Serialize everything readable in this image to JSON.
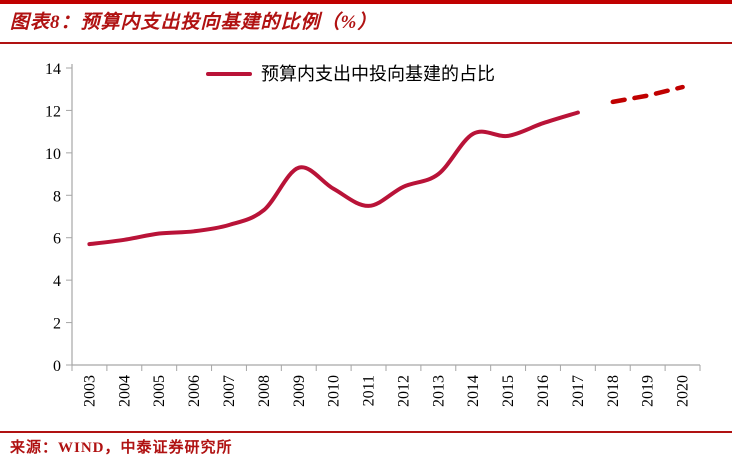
{
  "header": {
    "title": "图表8：预算内支出投向基建的比例（%）"
  },
  "footer": {
    "source": "来源：WIND，中泰证券研究所"
  },
  "colors": {
    "accent_red": "#b01212",
    "title_rule_red": "#c00000",
    "line_solid": "#b91338",
    "line_dashed": "#c00000",
    "axis_gray": "#a6a6a6",
    "label_black": "#000000"
  },
  "chart_data": {
    "type": "line",
    "title": "预算内支出投向基建的比例（%）",
    "xlabel": "",
    "ylabel": "",
    "ylim": [
      0,
      14
    ],
    "yticks": [
      0,
      2,
      4,
      6,
      8,
      10,
      12,
      14
    ],
    "grid": false,
    "legend_position": "top-center",
    "categories": [
      "2003",
      "2004",
      "2005",
      "2006",
      "2007",
      "2008",
      "2009",
      "2010",
      "2011",
      "2012",
      "2013",
      "2014",
      "2015",
      "2016",
      "2017",
      "2018",
      "2019",
      "2020"
    ],
    "series": [
      {
        "name": "预算内支出中投向基建的占比",
        "line_style": "solid",
        "years": [
          2003,
          2004,
          2005,
          2006,
          2007,
          2008,
          2009,
          2010,
          2011,
          2012,
          2013,
          2014,
          2015,
          2016,
          2017
        ],
        "values": [
          5.7,
          5.9,
          6.2,
          6.3,
          6.6,
          7.3,
          9.3,
          8.3,
          7.5,
          8.4,
          9.0,
          10.9,
          10.8,
          11.4,
          11.9
        ]
      },
      {
        "name": "",
        "line_style": "dashed",
        "years": [
          2018,
          2019,
          2020
        ],
        "values": [
          12.4,
          12.7,
          13.1
        ]
      }
    ]
  }
}
